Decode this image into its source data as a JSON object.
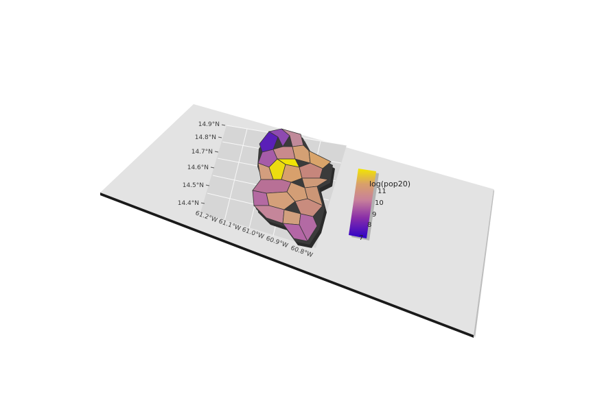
{
  "map": {
    "latitude_ticks": [
      "14.9°N",
      "14.8°N",
      "14.7°N",
      "14.6°N",
      "14.5°N",
      "14.4°N"
    ],
    "longitude_ticks": [
      "61.2°W",
      "61.1°W",
      "61.0°W",
      "60.9°W",
      "60.8°W"
    ],
    "legend": {
      "title": "log(pop20)",
      "ticks": [
        "11",
        "10",
        "9",
        "8",
        "7"
      ],
      "range": [
        7,
        11.6
      ],
      "palette": [
        "#2c00c8",
        "#8a2fa8",
        "#c8809a",
        "#d9a06a",
        "#f2e600"
      ]
    },
    "colors": {
      "base_plate": "#e3e3e3",
      "plate_edge": "#1a1a1a",
      "panel": "#d9d9d9",
      "grid": "#ffffff"
    }
  }
}
